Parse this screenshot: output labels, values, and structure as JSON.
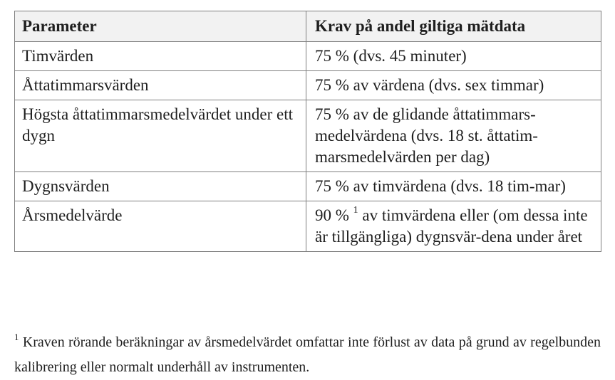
{
  "table": {
    "headers": [
      "Parameter",
      "Krav på andel giltiga mätdata"
    ],
    "rows": [
      {
        "parameter": "Timvärden",
        "requirement": "75 % (dvs. 45 minuter)"
      },
      {
        "parameter": "Åttatimmarsvärden",
        "requirement": "75 % av värdena (dvs. sex timmar)"
      },
      {
        "parameter": "Högsta åttatimmarsmedelvärdet under ett dygn",
        "requirement": "75 % av de glidande åttatimmars-medelvärdena (dvs. 18 st. åttatim-marsmedelvärden per dag)"
      },
      {
        "parameter": "Dygnsvärden",
        "requirement": "75 % av timvärdena (dvs. 18 tim-mar)"
      },
      {
        "parameter": "Årsmedelvärde",
        "requirement_before": "90 %",
        "requirement_note_marker": "1",
        "requirement_after": " av timvärdena eller (om dessa inte är tillgängliga) dygnsvär-dena under året"
      }
    ]
  },
  "footnote": {
    "marker": "1",
    "text": " Kraven rörande beräkningar av årsmedelvärdet omfattar inte förlust av data på grund av regelbunden kalibrering eller normalt underhåll av instrumenten."
  }
}
